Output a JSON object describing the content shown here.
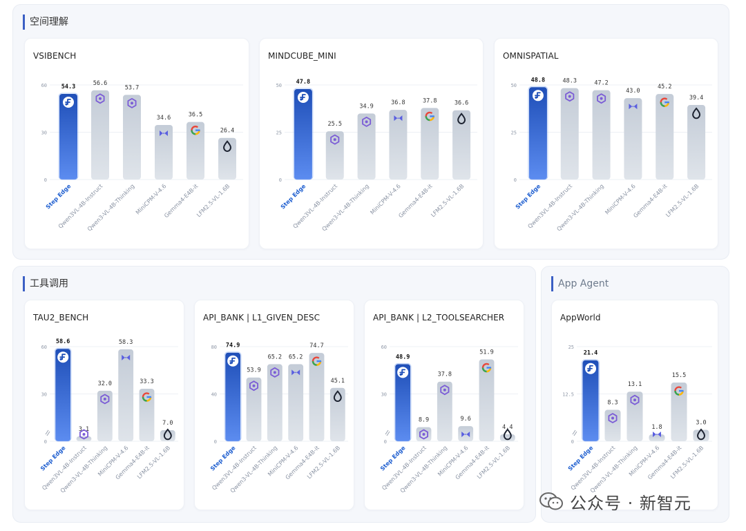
{
  "sections": [
    {
      "id": "spatial",
      "title": "空间理解"
    },
    {
      "id": "tools",
      "title": "工具调用"
    },
    {
      "id": "agent",
      "title": "App Agent"
    }
  ],
  "watermark": "公众号 · 新智元",
  "colors": {
    "highlight_top": "#1f4fb8",
    "highlight_bottom": "#5c8cf0",
    "other_top": "#c4ccd7",
    "other_bottom": "#dfe4ea",
    "highlight_label": "#1f5fd0"
  },
  "chart_data": [
    {
      "type": "bar",
      "title": "VSIBENCH",
      "categories": [
        "Step Edge",
        "Qwen3VL-4B-Instruct",
        "Qwen3-VL-4B-Thinking",
        "MiniCPM-V-4.6",
        "Gemma4-E4B-it",
        "LFM2.5-VL-1.6B"
      ],
      "values": [
        54.3,
        56.6,
        53.7,
        34.6,
        36.5,
        26.4
      ],
      "labels": [
        "54.3",
        "56.6",
        "53.7",
        "34.6",
        "36.5",
        "26.4"
      ],
      "ylim": [
        0,
        60
      ],
      "yticks": [
        0,
        30,
        60
      ],
      "icons": [
        "step-icon",
        "qwen-icon",
        "qwen-icon",
        "minicpm-icon",
        "gemma-icon",
        "lfm-icon"
      ],
      "axis_break": false
    },
    {
      "type": "bar",
      "title": "MINDCUBE_MINI",
      "categories": [
        "Step Edge",
        "Qwen3VL-4B-Instruct",
        "Qwen3-VL-4B-Thinking",
        "MiniCPM-V-4.6",
        "Gemma4-E4B-it",
        "LFM2.5-VL-1.6B"
      ],
      "values": [
        47.8,
        25.5,
        34.9,
        36.8,
        37.8,
        36.6
      ],
      "labels": [
        "47.8",
        "25.5",
        "34.9",
        "36.8",
        "37.8",
        "36.6"
      ],
      "ylim": [
        0,
        50
      ],
      "yticks": [
        0,
        25,
        50
      ],
      "icons": [
        "step-icon",
        "qwen-icon",
        "qwen-icon",
        "minicpm-icon",
        "gemma-icon",
        "lfm-icon"
      ],
      "axis_break": false
    },
    {
      "type": "bar",
      "title": "OMNISPATIAL",
      "categories": [
        "Step Edge",
        "Qwen3VL-4B-Instruct",
        "Qwen3-VL-4B-Thinking",
        "MiniCPM-V-4.6",
        "Gemma4-E4B-it",
        "LFM2.5-VL-1.6B"
      ],
      "values": [
        48.8,
        48.3,
        47.2,
        43.0,
        45.2,
        39.4
      ],
      "labels": [
        "48.8",
        "48.3",
        "47.2",
        "43.0",
        "45.2",
        "39.4"
      ],
      "ylim": [
        0,
        50
      ],
      "yticks": [
        0,
        25,
        50
      ],
      "icons": [
        "step-icon",
        "qwen-icon",
        "qwen-icon",
        "minicpm-icon",
        "gemma-icon",
        "lfm-icon"
      ],
      "axis_break": false
    },
    {
      "type": "bar",
      "title": "TAU2_BENCH",
      "categories": [
        "Step Edge",
        "Qwen3VL-4B-Instruct",
        "Qwen3-VL-4B-Thinking",
        "MiniCPM-V-4.6",
        "Gemma4-E4B-it",
        "LFM2.5-VL-1.6B"
      ],
      "values": [
        58.6,
        3.1,
        32.0,
        58.3,
        33.3,
        7.0
      ],
      "labels": [
        "58.6",
        "3.1",
        "32.0",
        "58.3",
        "33.3",
        "7.0"
      ],
      "ylim": [
        0,
        60
      ],
      "yticks": [
        0,
        30,
        60
      ],
      "icons": [
        "step-icon",
        "qwen-icon",
        "qwen-icon",
        "minicpm-icon",
        "gemma-icon",
        "lfm-icon"
      ],
      "axis_break": true
    },
    {
      "type": "bar",
      "title": "API_BANK | L1_GIVEN_DESC",
      "categories": [
        "Step Edge",
        "Qwen3VL-4B-Instruct",
        "Qwen3-VL-4B-Thinking",
        "MiniCPM-V-4.6",
        "Gemma4-E4B-it",
        "LFM2.5-VL-1.6B"
      ],
      "values": [
        74.9,
        53.9,
        65.2,
        65.2,
        74.7,
        45.1
      ],
      "labels": [
        "74.9",
        "53.9",
        "65.2",
        "65.2",
        "74.7",
        "45.1"
      ],
      "ylim": [
        0,
        80
      ],
      "yticks": [
        0,
        40,
        80
      ],
      "icons": [
        "step-icon",
        "qwen-icon",
        "qwen-icon",
        "minicpm-icon",
        "gemma-icon",
        "lfm-icon"
      ],
      "axis_break": false
    },
    {
      "type": "bar",
      "title": "API_BANK | L2_TOOLSEARCHER",
      "categories": [
        "Step Edge",
        "Qwen3VL-4B-Instruct",
        "Qwen3-VL-4B-Thinking",
        "MiniCPM-V-4.6",
        "Gemma4-E4B-it",
        "LFM2.5-VL-1.6B"
      ],
      "values": [
        48.9,
        8.9,
        37.8,
        9.6,
        51.9,
        4.4
      ],
      "labels": [
        "48.9",
        "8.9",
        "37.8",
        "9.6",
        "51.9",
        "4.4"
      ],
      "ylim": [
        0,
        60
      ],
      "yticks": [
        0,
        30,
        60
      ],
      "icons": [
        "step-icon",
        "qwen-icon",
        "qwen-icon",
        "minicpm-icon",
        "gemma-icon",
        "lfm-icon"
      ],
      "axis_break": true
    },
    {
      "type": "bar",
      "title": "AppWorld",
      "categories": [
        "Step Edge",
        "Qwen3VL-4B-Instruct",
        "Qwen3-VL-4B-Thinking",
        "MiniCPM-V-4.6",
        "Gemma4-E4B-it",
        "LFM2.5-VL-1.6B"
      ],
      "values": [
        21.4,
        8.3,
        13.1,
        1.8,
        15.5,
        3.0
      ],
      "labels": [
        "21.4",
        "8.3",
        "13.1",
        "1.8",
        "15.5",
        "3.0"
      ],
      "ylim": [
        0,
        25
      ],
      "yticks": [
        0,
        12.5,
        25
      ],
      "icons": [
        "step-icon",
        "qwen-icon",
        "qwen-icon",
        "minicpm-icon",
        "gemma-icon",
        "lfm-icon"
      ],
      "axis_break": true
    }
  ]
}
